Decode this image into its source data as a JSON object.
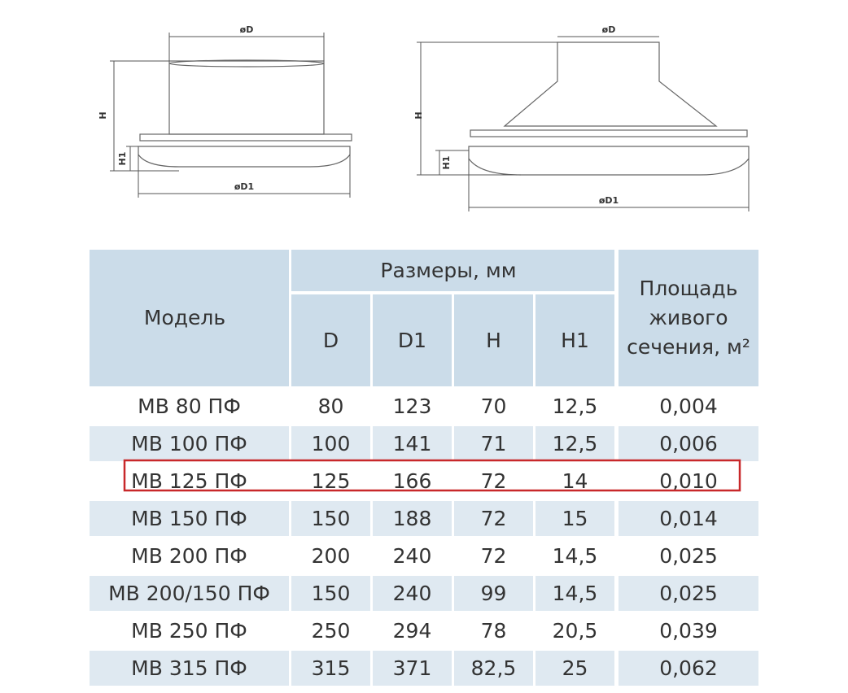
{
  "drawings": [
    {
      "d": "øD",
      "h": "H",
      "h1": "H1",
      "d1": "øD1"
    },
    {
      "d": "øD",
      "h": "H",
      "h1": "H1",
      "d1": "øD1"
    }
  ],
  "table": {
    "header": {
      "model": "Модель",
      "sizes": "Размеры, мм",
      "columns": [
        "D",
        "D1",
        "H",
        "H1"
      ],
      "area": [
        "Площадь",
        "живого",
        "сечения, м²"
      ]
    },
    "rows": [
      [
        "МВ 80 ПФ",
        "80",
        "123",
        "70",
        "12,5",
        "0,004"
      ],
      [
        "МВ 100 ПФ",
        "100",
        "141",
        "71",
        "12,5",
        "0,006"
      ],
      [
        "МВ 125 ПФ",
        "125",
        "166",
        "72",
        "14",
        "0,010"
      ],
      [
        "МВ 150 ПФ",
        "150",
        "188",
        "72",
        "15",
        "0,014"
      ],
      [
        "МВ 200 ПФ",
        "200",
        "240",
        "72",
        "14,5",
        "0,025"
      ],
      [
        "МВ 200/150 ПФ",
        "150",
        "240",
        "99",
        "14,5",
        "0,025"
      ],
      [
        "МВ 250 ПФ",
        "250",
        "294",
        "78",
        "20,5",
        "0,039"
      ],
      [
        "МВ 315 ПФ",
        "315",
        "371",
        "82,5",
        "25",
        "0,062"
      ]
    ],
    "highlight_row": 2
  }
}
